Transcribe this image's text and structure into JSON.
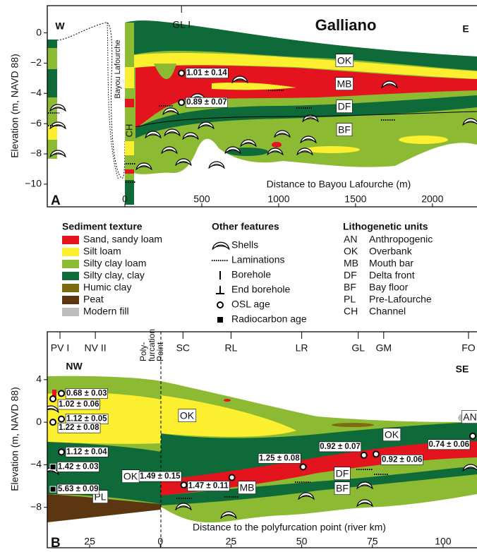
{
  "chart_data": [
    {
      "type": "section",
      "panel": "A",
      "title": "Galliano",
      "left_label": "W",
      "right_label": "E",
      "sites": [
        {
          "label": "GL I",
          "x": 368
        }
      ],
      "channel_label": "Bayou Lafourche",
      "core_label": "CH",
      "ylabel": "Elevation (m, NAVD 88)",
      "xlabel": "Distance to Bayou Lafourche (m)",
      "xlim": [
        -505,
        2290
      ],
      "ylim": [
        -11.5,
        1.8
      ],
      "xticks": [
        0,
        500,
        1000,
        1500,
        2000
      ],
      "yticks": [
        0,
        {
          "value": -2,
          "label": "−2"
        },
        {
          "value": -4,
          "label": "−4"
        },
        {
          "value": -6,
          "label": "−6"
        },
        {
          "value": -8,
          "label": "−8"
        },
        {
          "value": -10,
          "label": "−10"
        }
      ],
      "units": [
        "OK",
        "MB",
        "DF",
        "BF"
      ],
      "ages": [
        {
          "label": "1.01 ± 0.14",
          "x": 368,
          "y": -2.66,
          "marker": "circle"
        },
        {
          "label": "0.89 ± 0.07",
          "x": 368,
          "y": -4.6,
          "marker": "circle"
        }
      ]
    },
    {
      "type": "section",
      "panel": "B",
      "left_label": "NW",
      "right_label": "SE",
      "sites": [
        {
          "label": "PV I",
          "x": -35.5
        },
        {
          "label": "NV II",
          "x": -23
        },
        {
          "label": "SC",
          "x": 8
        },
        {
          "label": "RL",
          "x": 25
        },
        {
          "label": "LR",
          "x": 50
        },
        {
          "label": "GL",
          "x": 70
        },
        {
          "label": "GM",
          "x": 79
        },
        {
          "label": "FO",
          "x": 109
        }
      ],
      "divider_label": [
        "Poly-",
        "furcation",
        "Point"
      ],
      "ylabel": "Elevation (m, NAVD 88)",
      "xlabel": "Distance to the polyfurcation point (river km)",
      "xlim": [
        -40,
        112
      ],
      "ylim": [
        -11.8,
        8.5
      ],
      "xticks": [
        {
          "value": -25,
          "label": "25"
        },
        0,
        25,
        50,
        75,
        100
      ],
      "yticks": [
        4,
        0,
        {
          "value": -4,
          "label": "−4"
        },
        {
          "value": -8,
          "label": "−8"
        }
      ],
      "units": [
        "OK",
        "OK",
        "OK",
        "MB",
        "DF",
        "BF",
        "PL",
        "AN"
      ],
      "ages": [
        {
          "label": "0.68 ± 0.03",
          "x": -35,
          "y": 2.7,
          "marker": "circle"
        },
        {
          "label": "1.02 ± 0.06",
          "x": -38,
          "y": 2.2,
          "marker": "circle"
        },
        {
          "label": "1.12 ± 0.05",
          "x": -35,
          "y": 0.3,
          "marker": "circle"
        },
        {
          "label": "1.22 ± 0.08",
          "x": -38,
          "y": 0,
          "marker": "circle"
        },
        {
          "label": "1.12 ± 0.04",
          "x": -35,
          "y": -2.8,
          "marker": "circle"
        },
        {
          "label": "1.42 ± 0.03",
          "x": -38,
          "y": -4.2,
          "marker": "square"
        },
        {
          "label": "5.63 ± 0.09",
          "x": -38,
          "y": -6.3,
          "marker": "square"
        },
        {
          "label": "1.49 ± 0.15",
          "x": 8.3,
          "y": -5.9,
          "marker": "circle"
        },
        {
          "label": "1.47 ± 0.11",
          "x": 25.3,
          "y": -5.2,
          "marker": "circle"
        },
        {
          "label": "1.25 ± 0.08",
          "x": 50.5,
          "y": -4.2,
          "marker": "circle"
        },
        {
          "label": "0.92 ± 0.07",
          "x": 72,
          "y": -3.1,
          "marker": "circle"
        },
        {
          "label": "0.92 ± 0.06",
          "x": 76.3,
          "y": -3.0,
          "marker": "circle"
        },
        {
          "label": "0.74 ± 0.06",
          "x": 110.5,
          "y": -1.3,
          "marker": "circle"
        }
      ]
    }
  ],
  "legend": {
    "texture": {
      "title": "Sediment texture",
      "items": [
        {
          "label": "Sand, sandy loam",
          "color": "#e3141e"
        },
        {
          "label": "Silt loam",
          "color": "#fbef2f"
        },
        {
          "label": "Silty clay loam",
          "color": "#8dba33"
        },
        {
          "label": "Silty clay, clay",
          "color": "#0f6a3a"
        },
        {
          "label": "Humic clay",
          "color": "#7d6b12"
        },
        {
          "label": "Peat",
          "color": "#5b3610"
        },
        {
          "label": "Modern fill",
          "color": "#bebebe"
        }
      ]
    },
    "features": {
      "title": "Other features",
      "items": [
        "Shells",
        "Laminations",
        "Borehole",
        "End borehole",
        "OSL age",
        "Radiocarbon age"
      ]
    },
    "units": {
      "title": "Lithogenetic units",
      "items": [
        {
          "code": "AN",
          "name": "Anthropogenic"
        },
        {
          "code": "OK",
          "name": "Overbank"
        },
        {
          "code": "MB",
          "name": "Mouth bar"
        },
        {
          "code": "DF",
          "name": "Delta front"
        },
        {
          "code": "BF",
          "name": "Bay floor"
        },
        {
          "code": "PL",
          "name": "Pre-Lafourche"
        },
        {
          "code": "CH",
          "name": "Channel"
        }
      ]
    }
  }
}
